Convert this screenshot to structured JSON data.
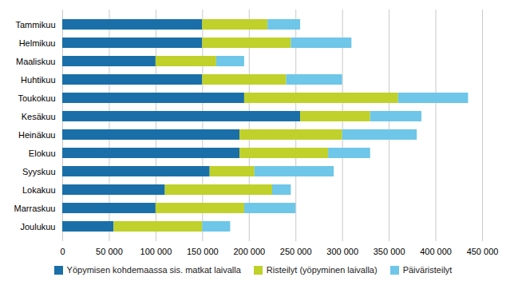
{
  "chart_data": {
    "type": "bar",
    "orientation": "horizontal",
    "stacked": true,
    "categories": [
      "Tammikuu",
      "Helmikuu",
      "Maaliskuu",
      "Huhtikuu",
      "Toukokuu",
      "Kesäkuu",
      "Heinäkuu",
      "Elokuu",
      "Syyskuu",
      "Lokakuu",
      "Marraskuu",
      "Joulukuu"
    ],
    "series": [
      {
        "name": "Yöpymisen kohdemaassa sis. matkat laivalla",
        "color": "#1a6fa8",
        "values": [
          150000,
          150000,
          100000,
          150000,
          195000,
          255000,
          190000,
          190000,
          158000,
          110000,
          100000,
          55000
        ]
      },
      {
        "name": "Risteilyt (yöpyminen laivalla)",
        "color": "#bfd12a",
        "values": [
          70000,
          95000,
          65000,
          90000,
          165000,
          75000,
          110000,
          95000,
          48000,
          115000,
          95000,
          95000
        ]
      },
      {
        "name": "Päiväristeilyt",
        "color": "#6ec6e8",
        "values": [
          35000,
          65000,
          30000,
          60000,
          75000,
          55000,
          80000,
          45000,
          85000,
          20000,
          55000,
          30000
        ]
      }
    ],
    "xlim": [
      0,
      450000
    ],
    "xticks": [
      0,
      {
        "value": 50000,
        "label": "50 000"
      },
      {
        "value": 100000,
        "label": "100 000"
      },
      {
        "value": 150000,
        "label": "150 000"
      },
      {
        "value": 200000,
        "label": "200 000"
      },
      {
        "value": 250000,
        "label": "250 000"
      },
      {
        "value": 300000,
        "label": "300 000"
      },
      {
        "value": 350000,
        "label": "350 000"
      },
      {
        "value": 400000,
        "label": "400 000"
      },
      {
        "value": 450000,
        "label": "450 000"
      }
    ],
    "grid": true,
    "legend": "bottom"
  }
}
